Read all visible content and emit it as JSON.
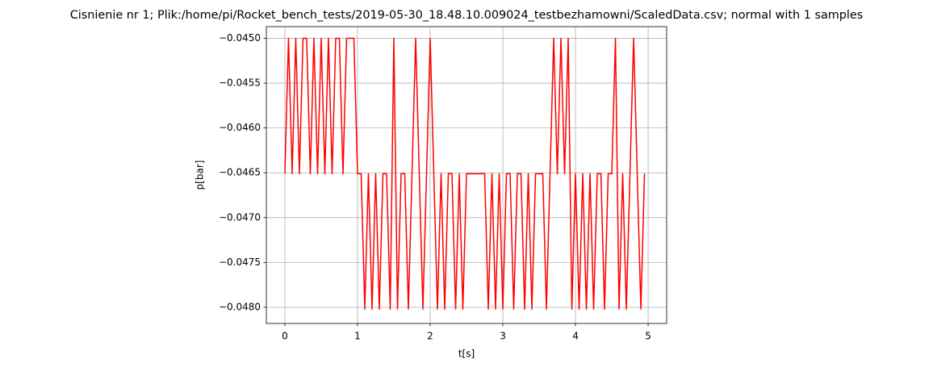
{
  "chart_data": {
    "type": "line",
    "title": "Cisnienie nr 1; Plik:/home/pi/Rocket_bench_tests/2019-05-30_18.48.10.009024_testbezhamowni/ScaledData.csv; normal with 1 samples",
    "xlabel": "t[s]",
    "ylabel": "p[bar]",
    "x": [
      0,
      0.05,
      0.1,
      0.15,
      0.2,
      0.25,
      0.3,
      0.35,
      0.4,
      0.45,
      0.5,
      0.55,
      0.6,
      0.65,
      0.7,
      0.75,
      0.8,
      0.85,
      0.9,
      0.95,
      1,
      1.05,
      1.1,
      1.15,
      1.2,
      1.25,
      1.3,
      1.35,
      1.4,
      1.45,
      1.5,
      1.55,
      1.6,
      1.65,
      1.7,
      1.75,
      1.8,
      1.85,
      1.9,
      1.95,
      2,
      2.05,
      2.1,
      2.15,
      2.2,
      2.25,
      2.3,
      2.35,
      2.4,
      2.45,
      2.5,
      2.55,
      2.6,
      2.65,
      2.7,
      2.75,
      2.8,
      2.85,
      2.9,
      2.95,
      3,
      3.05,
      3.1,
      3.15,
      3.2,
      3.25,
      3.3,
      3.35,
      3.4,
      3.45,
      3.5,
      3.55,
      3.6,
      3.65,
      3.7,
      3.75,
      3.8,
      3.85,
      3.9,
      3.95,
      4,
      4.05,
      4.1,
      4.15,
      4.2,
      4.25,
      4.3,
      4.35,
      4.4,
      4.45,
      4.5,
      4.55,
      4.6,
      4.65,
      4.7,
      4.75,
      4.8,
      4.85,
      4.9,
      4.95
    ],
    "series": [
      {
        "name": "p",
        "color": "#ff0000",
        "values": [
          -0.04651,
          -0.045,
          -0.04651,
          -0.045,
          -0.04651,
          -0.045,
          -0.045,
          -0.04651,
          -0.045,
          -0.04651,
          -0.045,
          -0.04651,
          -0.045,
          -0.04651,
          -0.045,
          -0.045,
          -0.04651,
          -0.045,
          -0.045,
          -0.045,
          -0.04651,
          -0.04651,
          -0.04802,
          -0.04651,
          -0.04802,
          -0.04651,
          -0.04802,
          -0.04651,
          -0.04651,
          -0.04802,
          -0.045,
          -0.04802,
          -0.04651,
          -0.04651,
          -0.04802,
          -0.04651,
          -0.045,
          -0.04651,
          -0.04802,
          -0.04651,
          -0.045,
          -0.04651,
          -0.04802,
          -0.04651,
          -0.04802,
          -0.04651,
          -0.04651,
          -0.04802,
          -0.04651,
          -0.04802,
          -0.04651,
          -0.04651,
          -0.04651,
          -0.04651,
          -0.04651,
          -0.04651,
          -0.04802,
          -0.04651,
          -0.04802,
          -0.04651,
          -0.04802,
          -0.04651,
          -0.04651,
          -0.04802,
          -0.04651,
          -0.04651,
          -0.04802,
          -0.04651,
          -0.04802,
          -0.04651,
          -0.04651,
          -0.04651,
          -0.04802,
          -0.04651,
          -0.045,
          -0.04651,
          -0.045,
          -0.04651,
          -0.045,
          -0.04802,
          -0.04651,
          -0.04802,
          -0.04651,
          -0.04802,
          -0.04651,
          -0.04802,
          -0.04651,
          -0.04651,
          -0.04802,
          -0.04651,
          -0.04651,
          -0.045,
          -0.04802,
          -0.04651,
          -0.04802,
          -0.04651,
          -0.045,
          -0.04651,
          -0.04802,
          -0.04651
        ]
      }
    ],
    "xlim": [
      -0.255,
      5.255
    ],
    "ylim": [
      -0.04818,
      -0.04487
    ],
    "xticks": [
      0,
      1,
      2,
      3,
      4,
      5
    ],
    "yticks": [
      {
        "value": -0.045,
        "label": "−0.0450"
      },
      {
        "value": -0.0455,
        "label": "−0.0455"
      },
      {
        "value": -0.046,
        "label": "−0.0460"
      },
      {
        "value": -0.0465,
        "label": "−0.0465"
      },
      {
        "value": -0.047,
        "label": "−0.0470"
      },
      {
        "value": -0.0475,
        "label": "−0.0475"
      },
      {
        "value": -0.048,
        "label": "−0.0480"
      }
    ],
    "grid": true
  }
}
